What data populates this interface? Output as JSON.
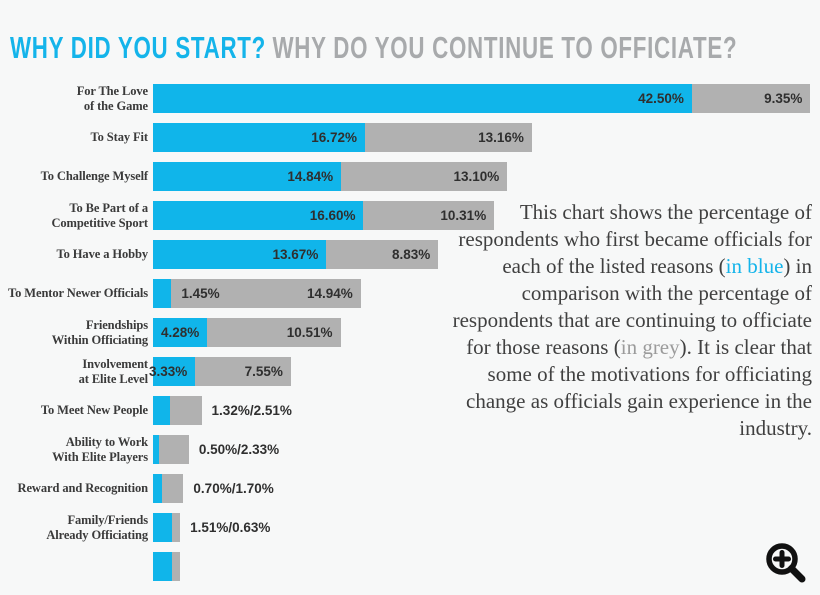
{
  "page": {
    "background": "#f7f8f8"
  },
  "title": {
    "part1": "WHY DID YOU START?",
    "part2": "WHY DO YOU CONTINUE TO OFFICIATE?",
    "part1_color": "#14b4ea",
    "part2_color": "#a8aaac"
  },
  "chart_data": {
    "type": "bar",
    "orientation": "horizontal",
    "unit": "percent",
    "grid": false,
    "legend": "none (series identified by color: blue = why started, grey = why continue)",
    "series": [
      {
        "name": "why-started",
        "color": "#10b5ea"
      },
      {
        "name": "why-continue",
        "color": "#b1b1b1"
      }
    ],
    "rows": [
      {
        "label": [
          "For The Love",
          "of the Game"
        ],
        "start": 42.5,
        "cont": 9.35,
        "start_text": "42.50%",
        "cont_text": "9.35%",
        "mode": "inside"
      },
      {
        "label": [
          "To Stay Fit"
        ],
        "start": 16.72,
        "cont": 13.16,
        "start_text": "16.72%",
        "cont_text": "13.16%",
        "mode": "inside"
      },
      {
        "label": [
          "To Challenge Myself"
        ],
        "start": 14.84,
        "cont": 13.1,
        "start_text": "14.84%",
        "cont_text": "13.10%",
        "mode": "inside"
      },
      {
        "label": [
          "To Be Part of a",
          "Competitive Sport"
        ],
        "start": 16.6,
        "cont": 10.31,
        "start_text": "16.60%",
        "cont_text": "10.31%",
        "mode": "inside"
      },
      {
        "label": [
          "To Have a Hobby"
        ],
        "start": 13.67,
        "cont": 8.83,
        "start_text": "13.67%",
        "cont_text": "8.83%",
        "mode": "inside"
      },
      {
        "label": [
          "To Mentor Newer Officials"
        ],
        "start": 1.45,
        "cont": 14.94,
        "start_text": "1.45%",
        "cont_text": "14.94%",
        "mode": "split"
      },
      {
        "label": [
          "Friendships",
          "Within Officiating"
        ],
        "start": 4.28,
        "cont": 10.51,
        "start_text": "4.28%",
        "cont_text": "10.51%",
        "mode": "inside"
      },
      {
        "label": [
          "Involvement",
          "at Elite Level"
        ],
        "start": 3.33,
        "cont": 7.55,
        "start_text": "3.33%",
        "cont_text": "7.55%",
        "mode": "inside"
      },
      {
        "label": [
          "To Meet New People"
        ],
        "start": 1.32,
        "cont": 2.51,
        "combined_text": "1.32%/2.51%",
        "mode": "outside"
      },
      {
        "label": [
          "Ability to Work",
          "With Elite Players"
        ],
        "start": 0.5,
        "cont": 2.33,
        "combined_text": "0.50%/2.33%",
        "mode": "outside"
      },
      {
        "label": [
          "Reward and Recognition"
        ],
        "start": 0.7,
        "cont": 1.7,
        "combined_text": "0.70%/1.70%",
        "mode": "outside"
      },
      {
        "label": [
          "Family/Friends",
          "Already Officiating"
        ],
        "start": 1.51,
        "cont": 0.63,
        "combined_text": "1.51%/0.63%",
        "mode": "outside"
      },
      {
        "label": [],
        "start": 1.5,
        "cont": 0.6,
        "mode": "none"
      }
    ]
  },
  "description": {
    "segments": [
      {
        "text": "This chart shows the percentage of respondents who first became officials for each of the listed reasons ("
      },
      {
        "text": "in blue",
        "color": "blue"
      },
      {
        "text": ") in comparison with the percentage of respondents that are continuing to officiate for those reasons ("
      },
      {
        "text": "in grey",
        "color": "grey"
      },
      {
        "text": "). It is clear that some of the motivations for officiating change as officials gain experience in the industry."
      }
    ]
  },
  "icons": {
    "zoom": "zoom-in-magnifier"
  }
}
